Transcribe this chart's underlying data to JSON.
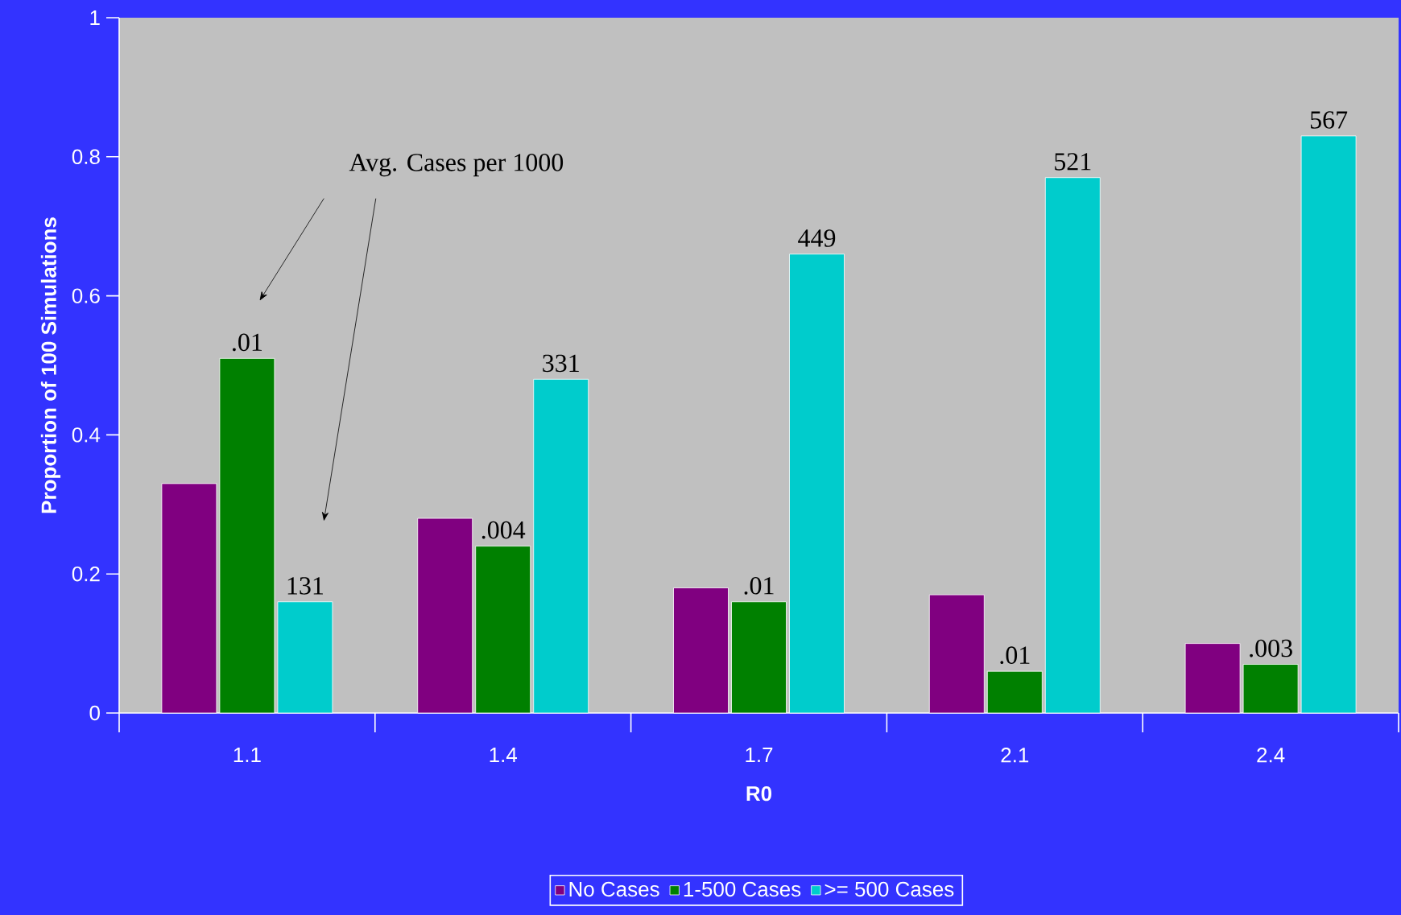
{
  "chart_data": {
    "type": "bar",
    "xlabel": "R0",
    "ylabel": "Proportion of 100 Simulations",
    "categories": [
      "1.1",
      "1.4",
      "1.7",
      "2.1",
      "2.4"
    ],
    "series": [
      {
        "name": "No Cases",
        "color": "#800080",
        "values": [
          0.33,
          0.28,
          0.18,
          0.17,
          0.1
        ]
      },
      {
        "name": "1-500 Cases",
        "color": "#008000",
        "values": [
          0.51,
          0.24,
          0.16,
          0.06,
          0.07
        ]
      },
      {
        "name": ">= 500 Cases",
        "color": "#00cccc",
        "values": [
          0.16,
          0.48,
          0.66,
          0.77,
          0.83
        ]
      }
    ],
    "ylim": [
      0,
      1
    ],
    "yticks": [
      0,
      0.2,
      0.4,
      0.6,
      0.8,
      1
    ],
    "annotations": [
      "Avg. Cases per 1000",
      {
        "text": ".01",
        "x": "1.1",
        "y": 0.51
      },
      {
        "text": ".004",
        "x": "1.4",
        "y": 0.24
      },
      {
        "text": ".01",
        "x": "1.7",
        "y": 0.16
      },
      {
        "text": ".01",
        "x": "2.1",
        "y": 0.06
      },
      {
        "text": ".003",
        "x": "2.4",
        "y": 0.07
      },
      "131",
      "331",
      "449",
      "521",
      "567"
    ],
    "legend": "bottom",
    "grid": false
  }
}
